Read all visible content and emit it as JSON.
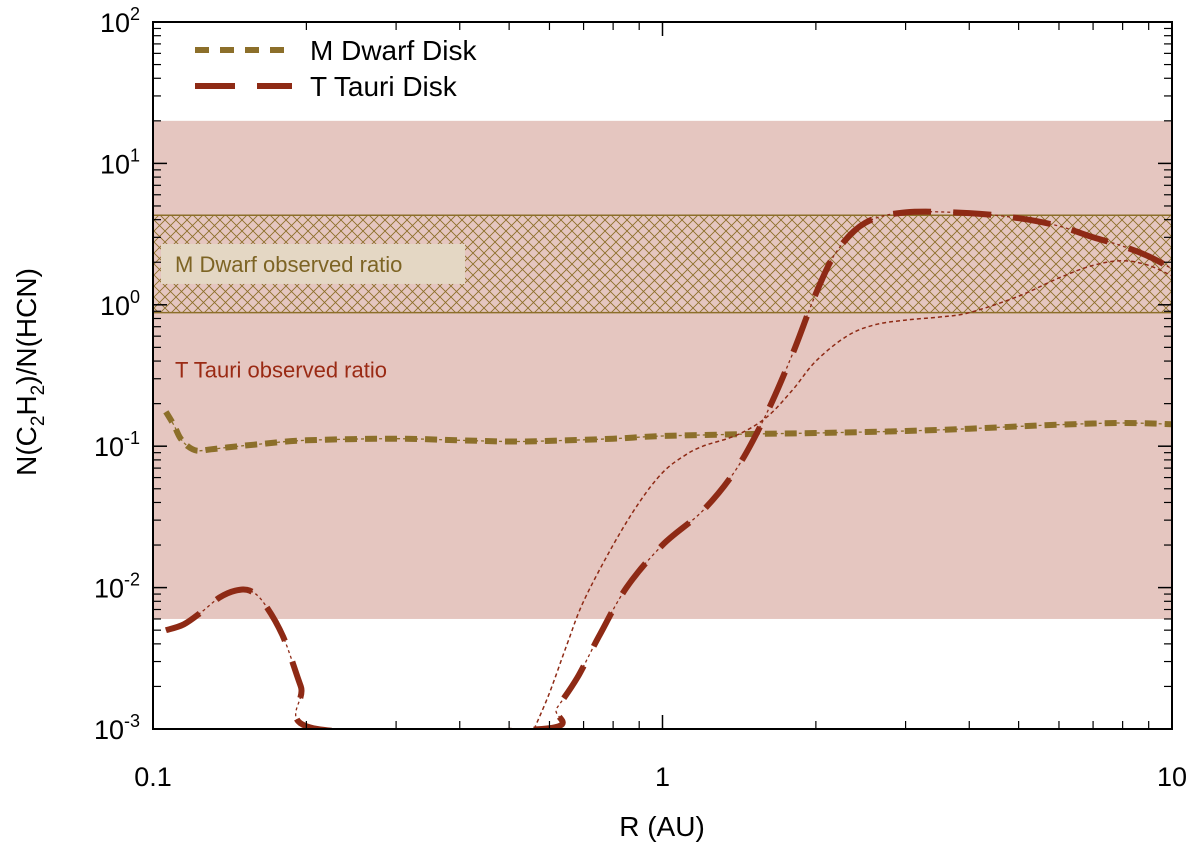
{
  "chart_data": {
    "type": "line",
    "xlabel": "R (AU)",
    "ylabel": {
      "prefix": "N(C",
      "sub1": "2",
      "mid": "H",
      "sub2": "2",
      "suffix": ")/N(HCN)"
    },
    "x_scale": "log",
    "y_scale": "log",
    "xlim": [
      0.1,
      10
    ],
    "ylim": [
      0.001,
      100
    ],
    "x_ticks": [
      {
        "value": 0.1,
        "label": "0.1"
      },
      {
        "value": 1,
        "label": "1"
      },
      {
        "value": 10,
        "label": "10"
      }
    ],
    "y_ticks": [
      {
        "value": 0.001,
        "base": "10",
        "exp": "-3"
      },
      {
        "value": 0.01,
        "base": "10",
        "exp": "-2"
      },
      {
        "value": 0.1,
        "base": "10",
        "exp": "-1"
      },
      {
        "value": 1,
        "base": "10",
        "exp": "0"
      },
      {
        "value": 10,
        "base": "10",
        "exp": "1"
      },
      {
        "value": 100,
        "base": "10",
        "exp": "2"
      }
    ],
    "legend_position": "top-left",
    "bands": [
      {
        "label": "T Tauri observed ratio",
        "ymin": 0.006,
        "ymax": 20,
        "color": "#e5c6c0",
        "text_color": "#9a2a14",
        "hatch": false
      },
      {
        "label": "M Dwarf observed ratio",
        "ymin": 0.88,
        "ymax": 4.3,
        "color": "#8c6f2a",
        "text_color": "#7d6424",
        "label_bg": "#e4d7c4",
        "hatch": true
      }
    ],
    "series": [
      {
        "name": "M Dwarf Disk",
        "color": "#8c6f2a",
        "style": "short-dash",
        "x": [
          0.106,
          0.11,
          0.113,
          0.117,
          0.122,
          0.13,
          0.14,
          0.16,
          0.2,
          0.3,
          0.4,
          0.5,
          0.6,
          0.8,
          1.0,
          1.5,
          2.0,
          3.0,
          4.0,
          5.0,
          6.0,
          8.0,
          10.0
        ],
        "values": [
          0.175,
          0.14,
          0.115,
          0.1,
          0.093,
          0.095,
          0.098,
          0.103,
          0.11,
          0.113,
          0.11,
          0.108,
          0.109,
          0.113,
          0.118,
          0.122,
          0.124,
          0.128,
          0.133,
          0.138,
          0.142,
          0.146,
          0.143
        ]
      },
      {
        "name": "T Tauri Disk",
        "color": "#8e2a15",
        "style": "long-dash",
        "x": [
          0.106,
          0.115,
          0.125,
          0.135,
          0.145,
          0.155,
          0.165,
          0.18,
          0.195,
          0.21,
          0.58,
          0.62,
          0.68,
          0.75,
          0.85,
          1.0,
          1.2,
          1.4,
          1.6,
          1.8,
          2.0,
          2.2,
          2.5,
          3.0,
          4.0,
          5.0,
          6.0,
          7.0,
          8.0,
          9.0,
          10.0
        ],
        "values": [
          0.005,
          0.0055,
          0.0068,
          0.0085,
          0.0095,
          0.0095,
          0.0078,
          0.0045,
          0.002,
          0.001,
          0.001,
          0.0014,
          0.0023,
          0.0045,
          0.01,
          0.02,
          0.035,
          0.07,
          0.17,
          0.45,
          1.2,
          2.4,
          3.8,
          4.5,
          4.45,
          4.1,
          3.6,
          3.0,
          2.6,
          2.2,
          1.8
        ]
      },
      {
        "name": "",
        "color": "#8e2a15",
        "style": "thin-dotted",
        "x": [
          0.56,
          0.6,
          0.65,
          0.7,
          0.8,
          0.9,
          1.0,
          1.1,
          1.2,
          1.4,
          1.6,
          1.8,
          2.0,
          2.3,
          2.6,
          3.0,
          3.5,
          4.0,
          5.0,
          6.0,
          7.0,
          8.0,
          9.0,
          10.0
        ],
        "values": [
          0.001,
          0.0018,
          0.004,
          0.008,
          0.02,
          0.04,
          0.065,
          0.085,
          0.1,
          0.12,
          0.16,
          0.25,
          0.4,
          0.6,
          0.72,
          0.78,
          0.82,
          0.88,
          1.15,
          1.55,
          1.9,
          2.05,
          1.9,
          1.6
        ]
      }
    ]
  }
}
